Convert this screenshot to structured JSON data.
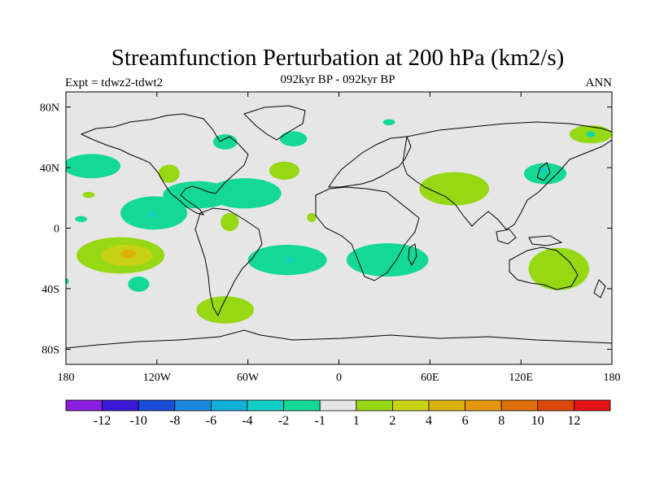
{
  "title": "Streamfunction Perturbation at 200 hPa (km2/s)",
  "subtitle_left": "Expt = tdwz2-tdwt2",
  "subtitle_center": "092kyr BP - 092kyr BP",
  "subtitle_right": "ANN",
  "map": {
    "lon_range": [
      -180,
      180
    ],
    "lat_range": [
      -90,
      90
    ],
    "background_color": "#e6e6e6",
    "x_ticks": [
      {
        "lon": -180,
        "label": "180"
      },
      {
        "lon": -120,
        "label": "120W"
      },
      {
        "lon": -60,
        "label": "60W"
      },
      {
        "lon": 0,
        "label": "0"
      },
      {
        "lon": 60,
        "label": "60E"
      },
      {
        "lon": 120,
        "label": "120E"
      },
      {
        "lon": 180,
        "label": "180"
      }
    ],
    "y_ticks": [
      {
        "lat": 80,
        "label": "80N"
      },
      {
        "lat": 40,
        "label": "40N"
      },
      {
        "lat": 0,
        "label": "0"
      },
      {
        "lat": -40,
        "label": "40S"
      },
      {
        "lat": -80,
        "label": "80S"
      }
    ]
  },
  "colorbar": {
    "colors": [
      "#8a1ee0",
      "#3a18d8",
      "#1a4cd8",
      "#1a8ae0",
      "#10b0d8",
      "#10cfc8",
      "#14d896",
      "#e6e6e6",
      "#96d814",
      "#c8d214",
      "#dcb20a",
      "#e6960a",
      "#e06e0a",
      "#dc460a",
      "#e01414"
    ],
    "labels": [
      "-12",
      "-10",
      "-8",
      "-6",
      "-4",
      "-2",
      "-1",
      "1",
      "2",
      "4",
      "6",
      "8",
      "10",
      "12"
    ]
  },
  "field_regions": [
    {
      "name": "north-pacific-negative",
      "level": -1,
      "lon": -163,
      "lat": 41,
      "rlon": 19,
      "rlat": 8
    },
    {
      "name": "gulf-of-mexico-negative",
      "level": -1,
      "lon": -93,
      "lat": 22,
      "rlon": 23,
      "rlat": 9
    },
    {
      "name": "western-atlantic-negative",
      "level": -1,
      "lon": -62,
      "lat": 23,
      "rlon": 24,
      "rlat": 10
    },
    {
      "name": "east-pacific-negative",
      "level": -1,
      "lon": -122,
      "lat": 10,
      "rlon": 22,
      "rlat": 11
    },
    {
      "name": "east-pacific-core",
      "level": -2,
      "lon": -123,
      "lat": 9,
      "rlon": 2,
      "rlat": 2
    },
    {
      "name": "hawaii-negative",
      "level": -1,
      "lon": -170,
      "lat": 6,
      "rlon": 4,
      "rlat": 2
    },
    {
      "name": "hudson-bay-negative",
      "level": -1,
      "lon": -75,
      "lat": 57,
      "rlon": 8,
      "rlat": 5
    },
    {
      "name": "greenland-negative",
      "level": -1,
      "lon": -30,
      "lat": 59,
      "rlon": 9,
      "rlat": 5
    },
    {
      "name": "north-atlantic-positive",
      "level": 1,
      "lon": -36,
      "lat": 38,
      "rlon": 10,
      "rlat": 6
    },
    {
      "name": "mexico-positive",
      "level": 1,
      "lon": -112,
      "lat": 36,
      "rlon": 7,
      "rlat": 6
    },
    {
      "name": "central-pacific-positive",
      "level": 1,
      "lon": -165,
      "lat": 22,
      "rlon": 4,
      "rlat": 2
    },
    {
      "name": "amazon-positive",
      "level": 1,
      "lon": -72,
      "lat": 4,
      "rlon": 6,
      "rlat": 6
    },
    {
      "name": "west-africa-positive",
      "level": 1,
      "lon": -18,
      "lat": 7,
      "rlon": 3,
      "rlat": 3
    },
    {
      "name": "south-atlantic-negative",
      "level": -1,
      "lon": -34,
      "lat": -21,
      "rlon": 26,
      "rlat": 10
    },
    {
      "name": "south-atlantic-core",
      "level": -2,
      "lon": -33,
      "lat": -21,
      "rlon": 2,
      "rlat": 2
    },
    {
      "name": "south-pacific-positive",
      "level": 1,
      "lon": -144,
      "lat": -18,
      "rlon": 29,
      "rlat": 12
    },
    {
      "name": "south-pacific-stronger",
      "level": 2,
      "lon": -140,
      "lat": -18,
      "rlon": 17,
      "rlat": 7
    },
    {
      "name": "south-pacific-core",
      "level": 4,
      "lon": -139,
      "lat": -17,
      "rlon": 5,
      "rlat": 3
    },
    {
      "name": "south-pacific-negative-small",
      "level": -1,
      "lon": -132,
      "lat": -37,
      "rlon": 7,
      "rlat": 5
    },
    {
      "name": "chile-positive",
      "level": 1,
      "lon": -75,
      "lat": -54,
      "rlon": 19,
      "rlat": 9
    },
    {
      "name": "southern-africa-negative",
      "level": -1,
      "lon": 32,
      "lat": -21,
      "rlon": 27,
      "rlat": 11
    },
    {
      "name": "asia-positive",
      "level": 1,
      "lon": 76,
      "lat": 26,
      "rlon": 23,
      "rlat": 11
    },
    {
      "name": "japan-negative",
      "level": -1,
      "lon": 136,
      "lat": 36,
      "rlon": 14,
      "rlat": 7
    },
    {
      "name": "japan-core",
      "level": -2,
      "lon": 135,
      "lat": 38,
      "rlon": 2,
      "rlat": 2
    },
    {
      "name": "arctic-siberia-positive",
      "level": 1,
      "lon": 166,
      "lat": 62,
      "rlon": 14,
      "rlat": 6
    },
    {
      "name": "arctic-siberia-negative",
      "level": -1,
      "lon": 166,
      "lat": 62,
      "rlon": 3,
      "rlat": 2
    },
    {
      "name": "australia-positive",
      "level": 1,
      "lon": 145,
      "lat": -27,
      "rlon": 20,
      "rlat": 14
    },
    {
      "name": "svalbard-negative",
      "level": -1,
      "lon": 33,
      "lat": 70,
      "rlon": 4,
      "rlat": 2
    },
    {
      "name": "far-southwest-negative",
      "level": -1,
      "lon": -180,
      "lat": -35,
      "rlon": 2,
      "rlat": 2
    }
  ]
}
